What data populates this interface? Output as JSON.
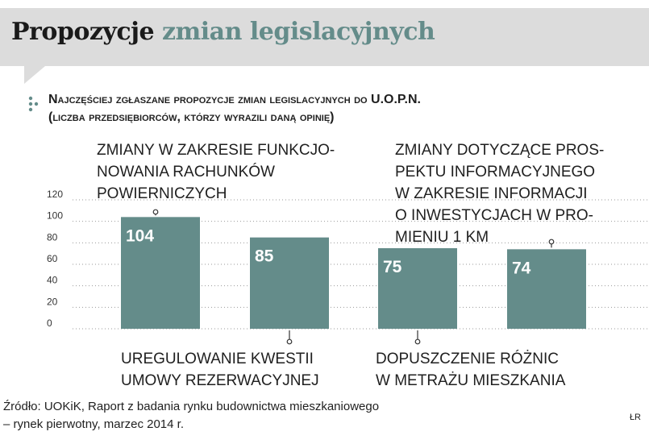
{
  "header": {
    "title_part1": "Propozycje",
    "title_part2": "zmian legislacyjnych"
  },
  "subtitle": {
    "line1": "Najczęściej zgłaszane propozycje zmian legislacyjnych do U.O.P.N.",
    "line2": "(liczba przedsiębiorców, którzy wyrazili daną opinię)"
  },
  "annotations": {
    "top_left": [
      "ZMIANY W ZAKRESIE FUNKCJO-",
      "NOWANIA RACHUNKÓW",
      "POWIERNICZYCH"
    ],
    "top_right": [
      "ZMIANY DOTYCZĄCE PROS-",
      "PEKTU INFORMACYJNEGO",
      "W ZAKRESIE INFORMACJI",
      "O INWESTYCJACH W PRO-",
      "MIENIU 1 KM"
    ],
    "bottom_left": [
      "UREGULOWANIE KWESTII",
      "UMOWY REZERWACYJNEJ"
    ],
    "bottom_right": [
      "DOPUSZCZENIE RÓŻNIC",
      "W METRAŻU MIESZKANIA"
    ]
  },
  "source": {
    "line1": "Źródło: UOKiK, Raport z badania rynku budownictwa mieszkaniowego",
    "line2": "– rynek pierwotny, marzec 2014 r."
  },
  "signature": "ŁR",
  "colors": {
    "bar": "#648c8a",
    "bar_label": "#ffffff",
    "accent": "#648c8a",
    "header_bg": "#dcdcdc",
    "grid": "#9a9a9a"
  },
  "chart_data": {
    "type": "bar",
    "categories": [
      "Zmiany w zakresie funkcjonowania rachunków powierniczych",
      "Uregulowanie kwestii umowy rezerwacyjnej",
      "Dopuszczenie różnic w metrażu mieszkania",
      "Zmiany dotyczące prospektu informacyjnego w zakresie informacji o inwestycjach w promieniu 1 km"
    ],
    "values": [
      104,
      85,
      75,
      74
    ],
    "value_labels": [
      "104",
      "85",
      "75",
      "74"
    ],
    "yticks": [
      0,
      20,
      40,
      60,
      80,
      100,
      120
    ],
    "ylim": [
      0,
      120
    ],
    "grid": true,
    "legend": "none"
  }
}
